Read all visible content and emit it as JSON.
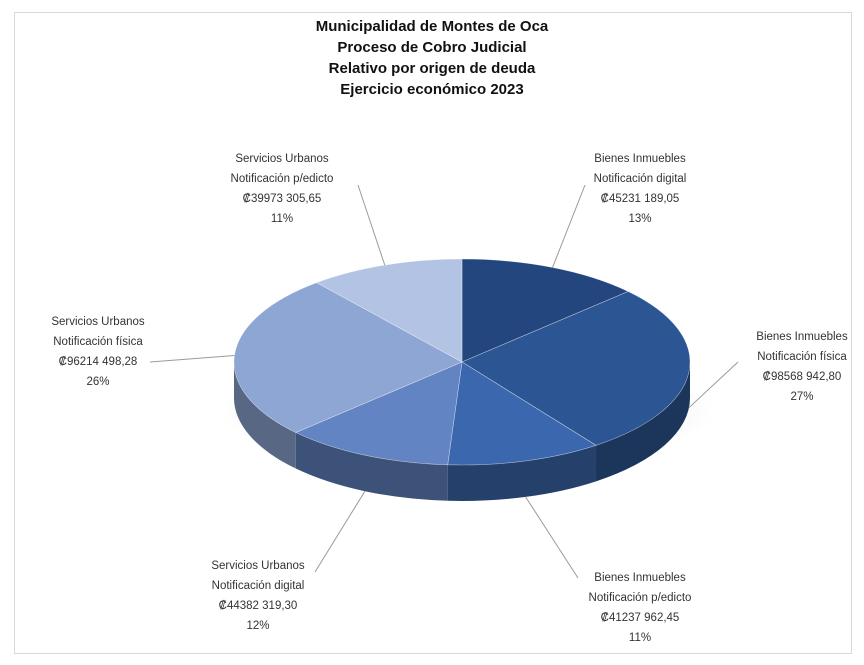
{
  "chart_data": {
    "type": "pie",
    "title_lines": [
      "Municipalidad de Montes de Oca",
      "Proceso de Cobro Judicial",
      "Relativo por origen de deuda",
      "Ejercicio económico 2023"
    ],
    "slices": [
      {
        "category": "Bienes Inmuebles",
        "subcategory": "Notificación digital",
        "value_text": "₡45231 189,05",
        "value": 45231189.05,
        "percent_text": "13%",
        "percent": 13,
        "color": "#24467f"
      },
      {
        "category": "Bienes Inmuebles",
        "subcategory": "Notificación física",
        "value_text": "₡98568 942,80",
        "value": 98568942.8,
        "percent_text": "27%",
        "percent": 27,
        "color": "#2c5593"
      },
      {
        "category": "Bienes Inmuebles",
        "subcategory": "Notificación p/edicto",
        "value_text": "₡41237 962,45",
        "value": 41237962.45,
        "percent_text": "11%",
        "percent": 11,
        "color": "#3a67ad"
      },
      {
        "category": "Servicios Urbanos",
        "subcategory": "Notificación digital",
        "value_text": "₡44382 319,30",
        "value": 44382319.3,
        "percent_text": "12%",
        "percent": 12,
        "color": "#6384c2"
      },
      {
        "category": "Servicios Urbanos",
        "subcategory": "Notificación física",
        "value_text": "₡96214 498,28",
        "value": 96214498.28,
        "percent_text": "26%",
        "percent": 26,
        "color": "#8ea6d4"
      },
      {
        "category": "Servicios Urbanos",
        "subcategory": "Notificación p/edicto",
        "value_text": "₡39973 305,65",
        "value": 39973305.65,
        "percent_text": "11%",
        "percent": 11,
        "color": "#b3c3e3"
      }
    ],
    "start_angle_deg": 0,
    "direction": "clockwise",
    "style": "3d-exploded-none",
    "legend": "none"
  }
}
